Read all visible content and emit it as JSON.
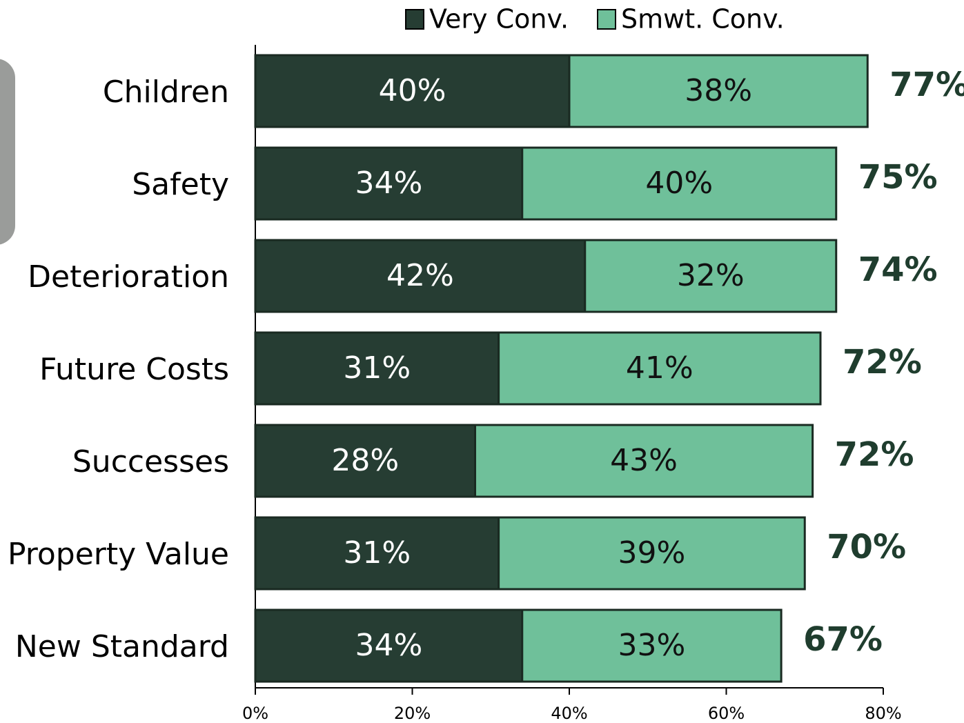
{
  "chart_data": {
    "type": "stacked-barh",
    "categories": [
      "Children",
      "Safety",
      "Deterioration",
      "Future Costs",
      "Successes",
      "Property Value",
      "New Standard"
    ],
    "series": [
      {
        "name": "Very Conv.",
        "color": "#263d33",
        "values": [
          40,
          34,
          42,
          31,
          28,
          31,
          34
        ],
        "value_labels": [
          "40%",
          "34%",
          "42%",
          "31%",
          "28%",
          "31%",
          "34%"
        ]
      },
      {
        "name": "Smwt. Conv.",
        "color": "#6fc09a",
        "values": [
          38,
          40,
          32,
          41,
          43,
          39,
          33
        ],
        "value_labels": [
          "38%",
          "40%",
          "32%",
          "41%",
          "43%",
          "39%",
          "33%"
        ]
      }
    ],
    "totals": {
      "values": [
        77,
        75,
        74,
        72,
        72,
        70,
        67
      ],
      "value_labels": [
        "77%",
        "75%",
        "74%",
        "72%",
        "72%",
        "70%",
        "67%"
      ]
    },
    "xlim": [
      0,
      80
    ],
    "xticks": [
      {
        "value": 0,
        "label": "0%"
      },
      {
        "value": 20,
        "label": "20%"
      },
      {
        "value": 40,
        "label": "40%"
      },
      {
        "value": 60,
        "label": "60%"
      },
      {
        "value": 80,
        "label": "80%"
      }
    ]
  }
}
